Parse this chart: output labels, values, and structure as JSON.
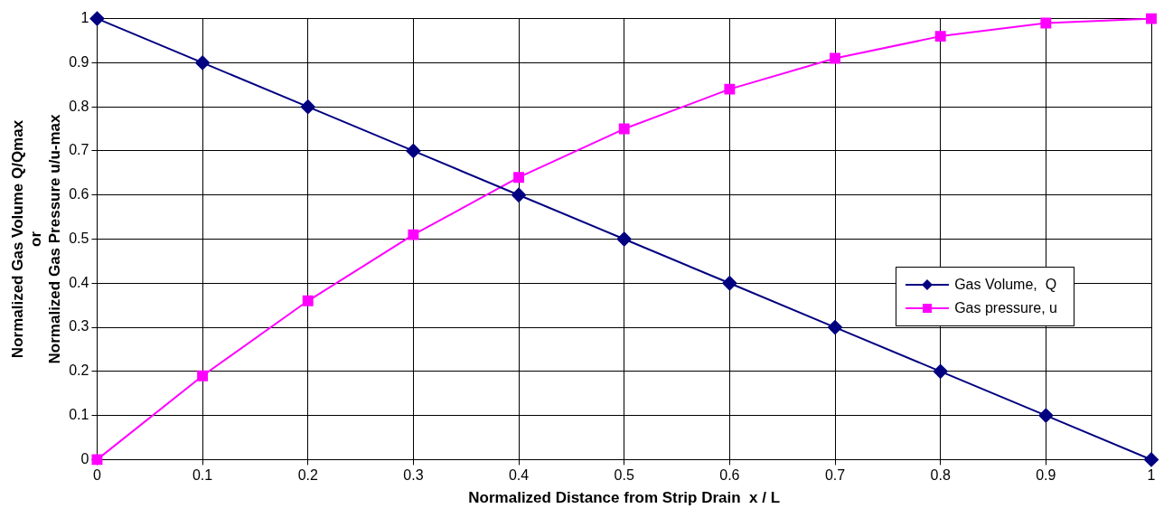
{
  "chart_data": {
    "type": "line",
    "xlabel": "Normalized Distance from Strip Drain  x / L",
    "ylabel": "Normalized Gas Volume Q/Qmax\nor\nNormalized Gas Pressure u/u-max",
    "x": [
      0,
      0.1,
      0.2,
      0.3,
      0.4,
      0.5,
      0.6,
      0.7,
      0.8,
      0.9,
      1
    ],
    "series": [
      {
        "name": "Gas Volume,  Q",
        "color": "#000080",
        "marker": "diamond",
        "values": [
          1,
          0.9,
          0.8,
          0.7,
          0.6,
          0.5,
          0.4,
          0.3,
          0.2,
          0.1,
          0
        ]
      },
      {
        "name": "Gas pressure, u",
        "color": "#ff00ff",
        "marker": "square",
        "values": [
          0,
          0.19,
          0.36,
          0.51,
          0.64,
          0.75,
          0.84,
          0.91,
          0.96,
          0.99,
          1
        ]
      }
    ],
    "xlim": [
      0,
      1
    ],
    "ylim": [
      0,
      1
    ],
    "xticks": [
      0,
      0.1,
      0.2,
      0.3,
      0.4,
      0.5,
      0.6,
      0.7,
      0.8,
      0.9,
      1
    ],
    "yticks": [
      0,
      0.1,
      0.2,
      0.3,
      0.4,
      0.5,
      0.6,
      0.7,
      0.8,
      0.9,
      1
    ],
    "grid": true,
    "legend": "right",
    "line_style": "solid"
  }
}
